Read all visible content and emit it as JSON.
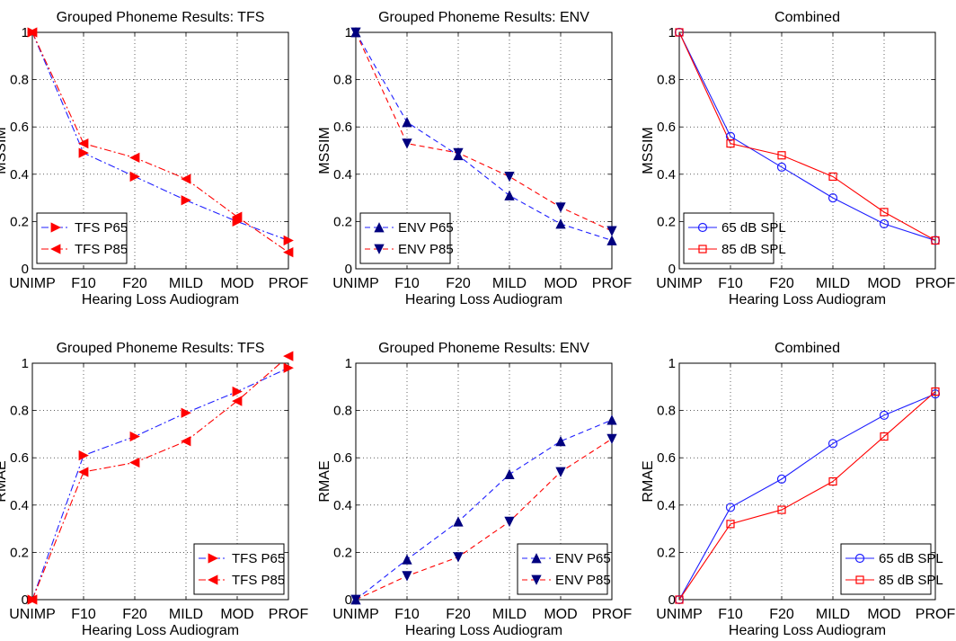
{
  "chart_data": [
    {
      "type": "line",
      "title": "Grouped Phoneme Results: TFS",
      "xlabel": "Hearing Loss Audiogram",
      "ylabel": "MSSIM",
      "categories": [
        "UNIMP",
        "F10",
        "F20",
        "MILD",
        "MOD",
        "PROF"
      ],
      "ylim": [
        0,
        1
      ],
      "yticks": [
        "0",
        "0.2",
        "0.4",
        "0.6",
        "0.8",
        "1"
      ],
      "grid": true,
      "legend": "bottom-left",
      "series": [
        {
          "name": "TFS P65",
          "color": "#1f1fff",
          "marker": "triangle-right",
          "marker_color": "#ff0000",
          "dash": "dash-dot",
          "values": [
            1.0,
            0.49,
            0.39,
            0.29,
            0.2,
            0.12
          ]
        },
        {
          "name": "TFS P85",
          "color": "#ff0000",
          "marker": "triangle-left",
          "marker_color": "#ff0000",
          "dash": "dash-dot",
          "values": [
            1.0,
            0.53,
            0.47,
            0.38,
            0.22,
            0.07
          ]
        }
      ]
    },
    {
      "type": "line",
      "title": "Grouped Phoneme Results: ENV",
      "xlabel": "Hearing Loss Audiogram",
      "ylabel": "MSSIM",
      "categories": [
        "UNIMP",
        "F10",
        "F20",
        "MILD",
        "MOD",
        "PROF"
      ],
      "ylim": [
        0,
        1
      ],
      "yticks": [
        "0",
        "0.2",
        "0.4",
        "0.6",
        "0.8",
        "1"
      ],
      "grid": true,
      "legend": "bottom-left",
      "series": [
        {
          "name": "ENV P65",
          "color": "#1f1fff",
          "marker": "triangle-up",
          "marker_color": "#00007f",
          "dash": "dash",
          "values": [
            1.0,
            0.62,
            0.48,
            0.31,
            0.19,
            0.12
          ]
        },
        {
          "name": "ENV P85",
          "color": "#ff0000",
          "marker": "triangle-down",
          "marker_color": "#00007f",
          "dash": "dash",
          "values": [
            1.0,
            0.53,
            0.49,
            0.39,
            0.26,
            0.16
          ]
        }
      ]
    },
    {
      "type": "line",
      "title": "Combined",
      "xlabel": "Hearing Loss Audiogram",
      "ylabel": "MSSIM",
      "categories": [
        "UNIMP",
        "F10",
        "F20",
        "MILD",
        "MOD",
        "PROF"
      ],
      "ylim": [
        0,
        1
      ],
      "yticks": [
        "0",
        "0.2",
        "0.4",
        "0.6",
        "0.8",
        "1"
      ],
      "grid": true,
      "legend": "bottom-left",
      "series": [
        {
          "name": "65 dB SPL",
          "color": "#1f1fff",
          "marker": "circle",
          "marker_color": "#1f1fff",
          "dash": "solid",
          "values": [
            1.0,
            0.56,
            0.43,
            0.3,
            0.19,
            0.12
          ]
        },
        {
          "name": "85 dB SPL",
          "color": "#ff0000",
          "marker": "square",
          "marker_color": "#ff0000",
          "dash": "solid",
          "values": [
            1.0,
            0.53,
            0.48,
            0.39,
            0.24,
            0.12
          ]
        }
      ]
    },
    {
      "type": "line",
      "title": "Grouped Phoneme Results: TFS",
      "xlabel": "Hearing Loss Audiogram",
      "ylabel": "RMAE",
      "categories": [
        "UNIMP",
        "F10",
        "F20",
        "MILD",
        "MOD",
        "PROF"
      ],
      "ylim": [
        0,
        1
      ],
      "yticks": [
        "0",
        "0.2",
        "0.4",
        "0.6",
        "0.8",
        "1"
      ],
      "grid": true,
      "legend": "bottom-right",
      "series": [
        {
          "name": "TFS P65",
          "color": "#1f1fff",
          "marker": "triangle-right",
          "marker_color": "#ff0000",
          "dash": "dash-dot",
          "values": [
            0.0,
            0.61,
            0.69,
            0.79,
            0.88,
            0.98
          ]
        },
        {
          "name": "TFS P85",
          "color": "#ff0000",
          "marker": "triangle-left",
          "marker_color": "#ff0000",
          "dash": "dash-dot",
          "values": [
            0.0,
            0.54,
            0.58,
            0.67,
            0.84,
            1.03
          ]
        }
      ]
    },
    {
      "type": "line",
      "title": "Grouped Phoneme Results: ENV",
      "xlabel": "Hearing Loss Audiogram",
      "ylabel": "RMAE",
      "categories": [
        "UNIMP",
        "F10",
        "F20",
        "MILD",
        "MOD",
        "PROF"
      ],
      "ylim": [
        0,
        1
      ],
      "yticks": [
        "0",
        "0.2",
        "0.4",
        "0.6",
        "0.8",
        "1"
      ],
      "grid": true,
      "legend": "bottom-right",
      "series": [
        {
          "name": "ENV P65",
          "color": "#1f1fff",
          "marker": "triangle-up",
          "marker_color": "#00007f",
          "dash": "dash",
          "values": [
            0.0,
            0.17,
            0.33,
            0.53,
            0.67,
            0.76
          ]
        },
        {
          "name": "ENV P85",
          "color": "#ff0000",
          "marker": "triangle-down",
          "marker_color": "#00007f",
          "dash": "dash",
          "values": [
            0.0,
            0.1,
            0.18,
            0.33,
            0.54,
            0.68
          ]
        }
      ]
    },
    {
      "type": "line",
      "title": "Combined",
      "xlabel": "Hearing Loss Audiogram",
      "ylabel": "RMAE",
      "categories": [
        "UNIMP",
        "F10",
        "F20",
        "MILD",
        "MOD",
        "PROF"
      ],
      "ylim": [
        0,
        1
      ],
      "yticks": [
        "0",
        "0.2",
        "0.4",
        "0.6",
        "0.8",
        "1"
      ],
      "grid": true,
      "legend": "bottom-right",
      "series": [
        {
          "name": "65 dB SPL",
          "color": "#1f1fff",
          "marker": "circle",
          "marker_color": "#1f1fff",
          "dash": "solid",
          "values": [
            0.0,
            0.39,
            0.51,
            0.66,
            0.78,
            0.87
          ]
        },
        {
          "name": "85 dB SPL",
          "color": "#ff0000",
          "marker": "square",
          "marker_color": "#ff0000",
          "dash": "solid",
          "values": [
            0.0,
            0.32,
            0.38,
            0.5,
            0.69,
            0.88
          ]
        }
      ]
    }
  ]
}
